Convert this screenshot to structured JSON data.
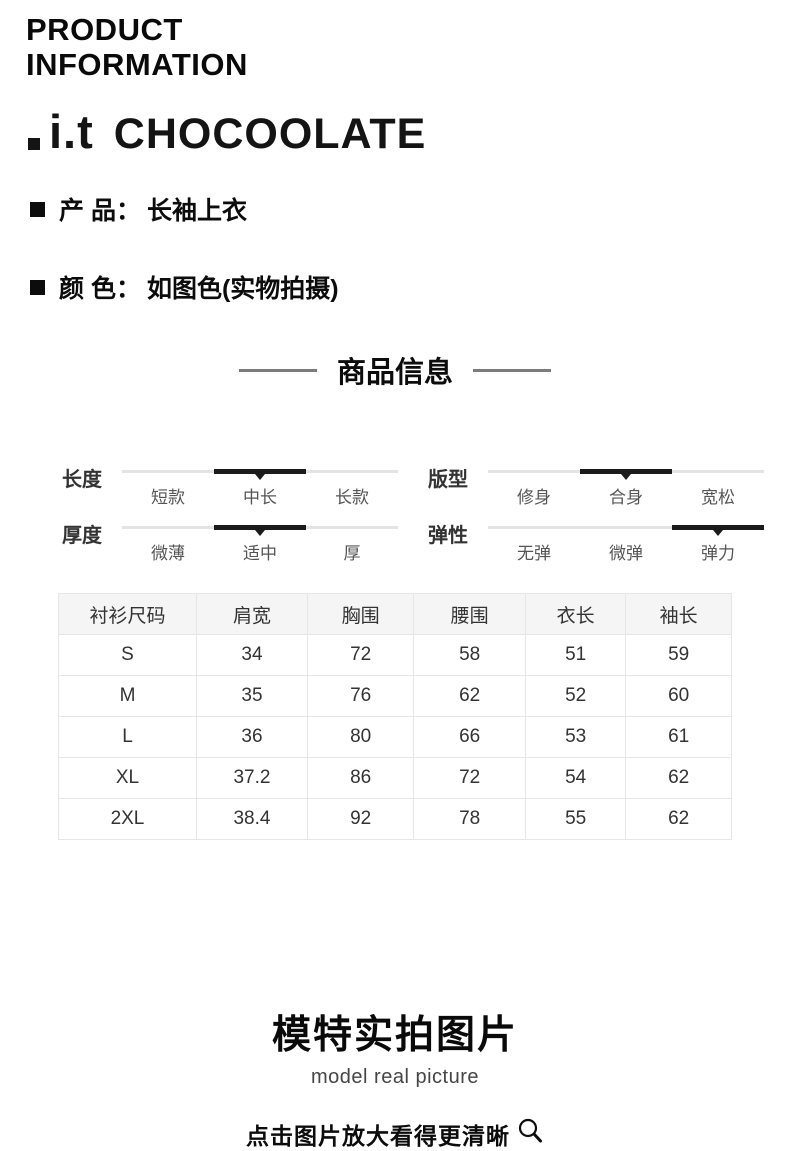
{
  "header": {
    "title_line1": "PRODUCT",
    "title_line2": "INFORMATION",
    "brand_it": "i.t",
    "brand_name": "CHOCOOLATE"
  },
  "product_attrs": [
    {
      "label": "产 品：",
      "value": "长袖上衣"
    },
    {
      "label": "颜 色：",
      "value": "如图色(实物拍摄)"
    }
  ],
  "section_title": "商品信息",
  "sliders": [
    {
      "label": "长度",
      "options": [
        "短款",
        "中长",
        "长款"
      ],
      "selected": 1
    },
    {
      "label": "版型",
      "options": [
        "修身",
        "合身",
        "宽松"
      ],
      "selected": 1
    },
    {
      "label": "厚度",
      "options": [
        "微薄",
        "适中",
        "厚"
      ],
      "selected": 1
    },
    {
      "label": "弹性",
      "options": [
        "无弹",
        "微弹",
        "弹力"
      ],
      "selected": 2
    }
  ],
  "size_table": {
    "headers": [
      "衬衫尺码",
      "肩宽",
      "胸围",
      "腰围",
      "衣长",
      "袖长"
    ],
    "rows": [
      [
        "S",
        "34",
        "72",
        "58",
        "51",
        "59"
      ],
      [
        "M",
        "35",
        "76",
        "62",
        "52",
        "60"
      ],
      [
        "L",
        "36",
        "80",
        "66",
        "53",
        "61"
      ],
      [
        "XL",
        "37.2",
        "86",
        "72",
        "54",
        "62"
      ],
      [
        "2XL",
        "38.4",
        "92",
        "78",
        "55",
        "62"
      ]
    ]
  },
  "footer": {
    "title": "模特实拍图片",
    "subtitle": "model real picture",
    "hint": "点击图片放大看得更清晰",
    "icon": "magnifier-icon"
  },
  "colors": {
    "text": "#0c0c0c",
    "muted_text": "#555555",
    "slider_track": "#e4e4e4",
    "slider_selected": "#1b1b1b",
    "table_border": "#e6e6e6",
    "table_header_bg": "#f5f5f5",
    "section_line": "#7c7c7c"
  }
}
